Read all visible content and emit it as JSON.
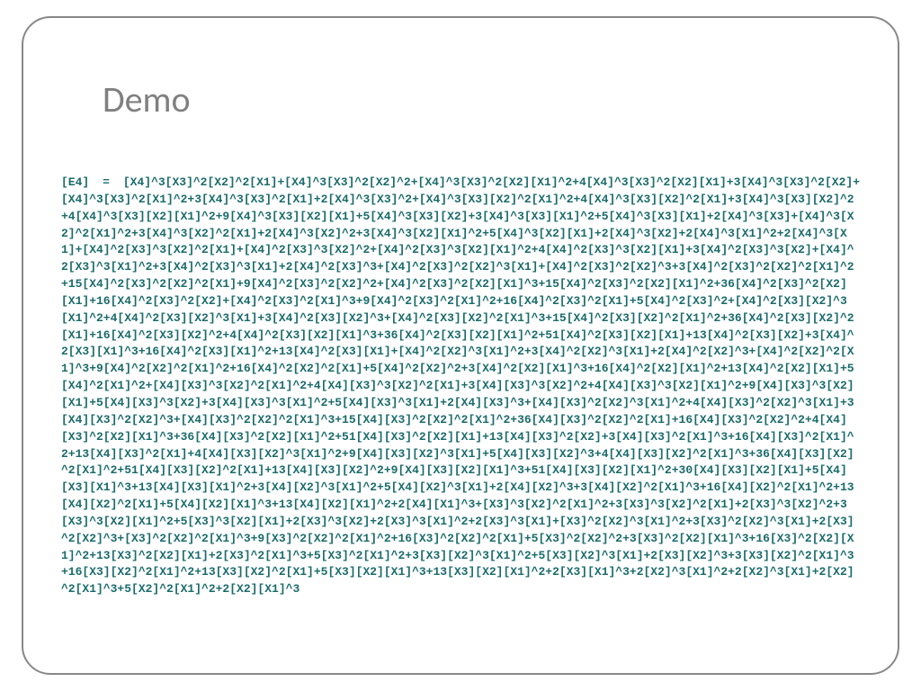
{
  "slide": {
    "title": "Demo",
    "title_color": "#808080",
    "title_fontsize": 40,
    "frame_border_color": "#888888",
    "frame_border_radius": 32,
    "background_color": "#ffffff"
  },
  "formula": {
    "color": "#1a6b6b",
    "fontsize": 13,
    "font_family": "Consolas, Courier New, monospace",
    "font_weight": "bold",
    "text": "[E4] = [X4]^3[X3]^2[X2]^2[X1]+[X4]^3[X3]^2[X2]^2+[X4]^3[X3]^2[X2][X1]^2+4[X4]^3[X3]^2[X2][X1]+3[X4]^3[X3]^2[X2]+[X4]^3[X3]^2[X1]^2+3[X4]^3[X3]^2[X1]+2[X4]^3[X3]^2+[X4]^3[X3][X2]^2[X1]^2+4[X4]^3[X3][X2]^2[X1]+3[X4]^3[X3][X2]^2+4[X4]^3[X3][X2][X1]^2+9[X4]^3[X3][X2][X1]+5[X4]^3[X3][X2]+3[X4]^3[X3][X1]^2+5[X4]^3[X3][X1]+2[X4]^3[X3]+[X4]^3[X2]^2[X1]^2+3[X4]^3[X2]^2[X1]+2[X4]^3[X2]^2+3[X4]^3[X2][X1]^2+5[X4]^3[X2][X1]+2[X4]^3[X2]+2[X4]^3[X1]^2+2[X4]^3[X1]+[X4]^2[X3]^3[X2]^2[X1]+[X4]^2[X3]^3[X2]^2+[X4]^2[X3]^3[X2][X1]^2+4[X4]^2[X3]^3[X2][X1]+3[X4]^2[X3]^3[X2]+[X4]^2[X3]^3[X1]^2+3[X4]^2[X3]^3[X1]+2[X4]^2[X3]^3+[X4]^2[X3]^2[X2]^3[X1]+[X4]^2[X3]^2[X2]^3+3[X4]^2[X3]^2[X2]^2[X1]^2+15[X4]^2[X3]^2[X2]^2[X1]+9[X4]^2[X3]^2[X2]^2+[X4]^2[X3]^2[X2][X1]^3+15[X4]^2[X3]^2[X2][X1]^2+36[X4]^2[X3]^2[X2][X1]+16[X4]^2[X3]^2[X2]+[X4]^2[X3]^2[X1]^3+9[X4]^2[X3]^2[X1]^2+16[X4]^2[X3]^2[X1]+5[X4]^2[X3]^2+[X4]^2[X3][X2]^3[X1]^2+4[X4]^2[X3][X2]^3[X1]+3[X4]^2[X3][X2]^3+[X4]^2[X3][X2]^2[X1]^3+15[X4]^2[X3][X2]^2[X1]^2+36[X4]^2[X3][X2]^2[X1]+16[X4]^2[X3][X2]^2+4[X4]^2[X3][X2][X1]^3+36[X4]^2[X3][X2][X1]^2+51[X4]^2[X3][X2][X1]+13[X4]^2[X3][X2]+3[X4]^2[X3][X1]^3+16[X4]^2[X3][X1]^2+13[X4]^2[X3][X1]+[X4]^2[X2]^3[X1]^2+3[X4]^2[X2]^3[X1]+2[X4]^2[X2]^3+[X4]^2[X2]^2[X1]^3+9[X4]^2[X2]^2[X1]^2+16[X4]^2[X2]^2[X1]+5[X4]^2[X2]^2+3[X4]^2[X2][X1]^3+16[X4]^2[X2][X1]^2+13[X4]^2[X2][X1]+5[X4]^2[X1]^2+[X4][X3]^3[X2]^2[X1]^2+4[X4][X3]^3[X2]^2[X1]+3[X4][X3]^3[X2]^2+4[X4][X3]^3[X2][X1]^2+9[X4][X3]^3[X2][X1]+5[X4][X3]^3[X2]+3[X4][X3]^3[X1]^2+5[X4][X3]^3[X1]+2[X4][X3]^3+[X4][X3]^2[X2]^3[X1]^2+4[X4][X3]^2[X2]^3[X1]+3[X4][X3]^2[X2]^3+[X4][X3]^2[X2]^2[X1]^3+15[X4][X3]^2[X2]^2[X1]^2+36[X4][X3]^2[X2]^2[X1]+16[X4][X3]^2[X2]^2+4[X4][X3]^2[X2][X1]^3+36[X4][X3]^2[X2][X1]^2+51[X4][X3]^2[X2][X1]+13[X4][X3]^2[X2]+3[X4][X3]^2[X1]^3+16[X4][X3]^2[X1]^2+13[X4][X3]^2[X1]+4[X4][X3][X2]^3[X1]^2+9[X4][X3][X2]^3[X1]+5[X4][X3][X2]^3+4[X4][X3][X2]^2[X1]^3+36[X4][X3][X2]^2[X1]^2+51[X4][X3][X2]^2[X1]+13[X4][X3][X2]^2+9[X4][X3][X2][X1]^3+51[X4][X3][X2][X1]^2+30[X4][X3][X2][X1]+5[X4][X3][X1]^3+13[X4][X3][X1]^2+3[X4][X2]^3[X1]^2+5[X4][X2]^3[X1]+2[X4][X2]^3+3[X4][X2]^2[X1]^3+16[X4][X2]^2[X1]^2+13[X4][X2]^2[X1]+5[X4][X2][X1]^3+13[X4][X2][X1]^2+2[X4][X1]^3+[X3]^3[X2]^2[X1]^2+3[X3]^3[X2]^2[X1]+2[X3]^3[X2]^2+3[X3]^3[X2][X1]^2+5[X3]^3[X2][X1]+2[X3]^3[X2]+2[X3]^3[X1]^2+2[X3]^3[X1]+[X3]^2[X2]^3[X1]^2+3[X3]^2[X2]^3[X1]+2[X3]^2[X2]^3+[X3]^2[X2]^2[X1]^3+9[X3]^2[X2]^2[X1]^2+16[X3]^2[X2]^2[X1]+5[X3]^2[X2]^2+3[X3]^2[X2][X1]^3+16[X3]^2[X2][X1]^2+13[X3]^2[X2][X1]+2[X3]^2[X1]^3+5[X3]^2[X1]^2+3[X3][X2]^3[X1]^2+5[X3][X2]^3[X1]+2[X3][X2]^3+3[X3][X2]^2[X1]^3+16[X3][X2]^2[X1]^2+13[X3][X2]^2[X1]+5[X3][X2][X1]^3+13[X3][X2][X1]^2+2[X3][X1]^3+2[X2]^3[X1]^2+2[X2]^3[X1]+2[X2]^2[X1]^3+5[X2]^2[X1]^2+2[X2][X1]^3"
  }
}
